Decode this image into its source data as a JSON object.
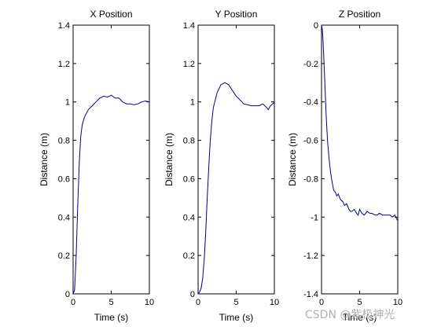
{
  "chart_data": [
    {
      "type": "line",
      "title": "X Position",
      "xlabel": "Time (s)",
      "ylabel": "Distance (m)",
      "xlim": [
        0,
        10
      ],
      "ylim": [
        0,
        1.4
      ],
      "xticks": [
        "0",
        "5",
        "10"
      ],
      "yticks": [
        "0",
        "0.2",
        "0.4",
        "0.6",
        "0.8",
        "1",
        "1.2",
        "1.4"
      ],
      "series": [
        {
          "x": [
            0,
            0.2,
            0.4,
            0.6,
            0.8,
            1.0,
            1.2,
            1.4,
            1.6,
            2.0,
            2.5,
            3.0,
            3.5,
            4.0,
            4.5,
            5.0,
            5.5,
            6.0,
            6.5,
            7.0,
            7.5,
            8.0,
            8.5,
            9.0,
            9.5,
            10.0
          ],
          "y": [
            0,
            0.02,
            0.2,
            0.45,
            0.68,
            0.82,
            0.88,
            0.91,
            0.93,
            0.96,
            0.98,
            1.0,
            1.02,
            1.03,
            1.025,
            1.035,
            1.02,
            1.02,
            1.0,
            0.99,
            0.99,
            0.985,
            0.99,
            1.0,
            1.005,
            1.0
          ],
          "color": "#00008b"
        }
      ]
    },
    {
      "type": "line",
      "title": "Y Position",
      "xlabel": "Time (s)",
      "ylabel": "Distance (m)",
      "xlim": [
        0,
        10
      ],
      "ylim": [
        0,
        1.4
      ],
      "xticks": [
        "0",
        "5",
        "10"
      ],
      "yticks": [
        "0",
        "0.2",
        "0.4",
        "0.6",
        "0.8",
        "1",
        "1.2",
        "1.4"
      ],
      "series": [
        {
          "x": [
            0,
            0.2,
            0.4,
            0.6,
            0.8,
            1.0,
            1.2,
            1.4,
            1.6,
            1.8,
            2.0,
            2.5,
            3.0,
            3.5,
            4.0,
            4.5,
            5.0,
            5.5,
            6.0,
            7.0,
            8.0,
            8.5,
            9.0,
            9.2,
            9.5,
            9.8,
            10.0
          ],
          "y": [
            0,
            0.01,
            0.03,
            0.08,
            0.18,
            0.32,
            0.5,
            0.66,
            0.8,
            0.9,
            0.97,
            1.05,
            1.09,
            1.1,
            1.09,
            1.06,
            1.03,
            1.01,
            0.99,
            0.98,
            0.98,
            0.99,
            0.97,
            0.96,
            0.98,
            0.99,
            1.0
          ],
          "color": "#00008b"
        }
      ]
    },
    {
      "type": "line",
      "title": "Z Position",
      "xlabel": "Time (s)",
      "ylabel": "Distance (m)",
      "xlim": [
        0,
        10
      ],
      "ylim": [
        -1.4,
        0
      ],
      "xticks": [
        "0",
        "5",
        "10"
      ],
      "yticks": [
        "0",
        "-0.2",
        "-0.4",
        "-0.6",
        "-0.8",
        "-1",
        "-1.2",
        "-1.4"
      ],
      "series": [
        {
          "x": [
            0,
            0.1,
            0.2,
            0.3,
            0.4,
            0.5,
            0.6,
            0.7,
            0.8,
            1.0,
            1.2,
            1.4,
            1.6,
            1.8,
            2.0,
            2.2,
            2.5,
            2.8,
            3.0,
            3.3,
            3.6,
            3.8,
            4.0,
            4.3,
            4.6,
            4.8,
            5.0,
            5.3,
            5.6,
            6.0,
            6.3,
            6.6,
            7.0,
            7.3,
            7.6,
            8.0,
            8.5,
            9.0,
            9.3,
            9.6,
            10.0
          ],
          "y": [
            0,
            -0.02,
            -0.08,
            -0.17,
            -0.27,
            -0.37,
            -0.46,
            -0.54,
            -0.61,
            -0.7,
            -0.77,
            -0.82,
            -0.86,
            -0.87,
            -0.89,
            -0.88,
            -0.91,
            -0.92,
            -0.94,
            -0.93,
            -0.96,
            -0.97,
            -0.97,
            -0.96,
            -0.98,
            -0.99,
            -0.96,
            -0.98,
            -0.99,
            -0.97,
            -0.98,
            -0.98,
            -0.99,
            -0.99,
            -0.98,
            -0.99,
            -0.99,
            -0.99,
            -1.0,
            -0.99,
            -1.02
          ],
          "color": "#00008b"
        }
      ]
    }
  ],
  "watermark": "CSDN @紫极神光",
  "colors": {
    "axes": "#000000",
    "line": "#00008b",
    "background": "#ffffff",
    "watermark": "#b0b0b0"
  }
}
